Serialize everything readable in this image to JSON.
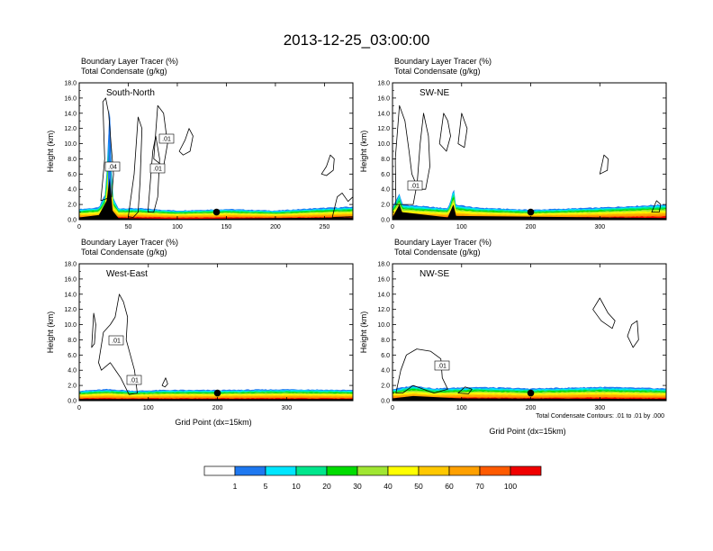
{
  "figure": {
    "title": "2013-12-25_03:00:00",
    "xlabel": "Grid Point (dx=15km)",
    "ylabel": "Height (km)",
    "contour_note": "Total Condensate Contours: .01 to .01 by .000"
  },
  "colorbar": {
    "labels": [
      "1",
      "5",
      "10",
      "20",
      "30",
      "40",
      "50",
      "60",
      "70",
      "100"
    ],
    "colors": [
      "#ffffff",
      "#1e78f0",
      "#00e6ff",
      "#00e68c",
      "#00dc00",
      "#a0e632",
      "#ffff00",
      "#ffc800",
      "#ffa000",
      "#ff5a00",
      "#f00000"
    ]
  },
  "chart_data": [
    {
      "type": "contour",
      "region_label": "South-North",
      "header_lines": [
        "Boundary Layer Tracer   (%)",
        "Total Condensate   (g/kg)"
      ],
      "xlim": [
        0,
        279
      ],
      "xticks": [
        "0",
        "50",
        "100",
        "150",
        "200",
        "250"
      ],
      "ylim": [
        0,
        18
      ],
      "yticks": [
        "0.0",
        "2.0",
        "4.0",
        "6.0",
        "8.0",
        "10.0",
        "12.0",
        "14.0",
        "16.0",
        "18.0"
      ],
      "contour_labels": [
        ".04",
        ".01",
        ".01"
      ],
      "marker_x": 140,
      "terrain": [
        [
          0,
          0.3
        ],
        [
          20,
          0.6
        ],
        [
          28,
          2.5
        ],
        [
          31,
          5.5
        ],
        [
          34,
          1.2
        ],
        [
          40,
          0.2
        ],
        [
          100,
          0.1
        ],
        [
          279,
          0.3
        ]
      ],
      "tracer_top": [
        [
          0,
          1.4
        ],
        [
          20,
          1.6
        ],
        [
          27,
          3.5
        ],
        [
          31,
          15
        ],
        [
          34,
          3
        ],
        [
          40,
          1.5
        ],
        [
          60,
          1.5
        ],
        [
          100,
          1.2
        ],
        [
          150,
          1.4
        ],
        [
          200,
          1.2
        ],
        [
          240,
          1.5
        ],
        [
          279,
          1.7
        ]
      ],
      "tracer_spike": [
        [
          29,
          2
        ],
        [
          30,
          12
        ],
        [
          31,
          14.5
        ],
        [
          32,
          12
        ],
        [
          33,
          2
        ]
      ],
      "clouds": [
        [
          [
            22,
            2.5
          ],
          [
            26,
            8
          ],
          [
            24,
            15.5
          ],
          [
            27,
            16
          ],
          [
            30,
            14
          ],
          [
            33,
            9
          ],
          [
            35,
            6
          ],
          [
            33,
            3
          ]
        ],
        [
          [
            50,
            0.4
          ],
          [
            56,
            6
          ],
          [
            60,
            13.5
          ],
          [
            64,
            12
          ],
          [
            62,
            5
          ],
          [
            60,
            1
          ],
          [
            55,
            0.3
          ]
        ],
        [
          [
            70,
            1
          ],
          [
            75,
            9
          ],
          [
            78,
            11
          ],
          [
            82,
            8
          ],
          [
            80,
            3
          ],
          [
            76,
            1
          ]
        ],
        [
          [
            76,
            8
          ],
          [
            80,
            15
          ],
          [
            86,
            14
          ],
          [
            90,
            10
          ],
          [
            86,
            7
          ]
        ],
        [
          [
            102,
            9
          ],
          [
            108,
            10.5
          ],
          [
            112,
            12
          ],
          [
            116,
            11
          ],
          [
            113,
            9
          ],
          [
            106,
            8.5
          ]
        ],
        [
          [
            247,
            6
          ],
          [
            252,
            7
          ],
          [
            256,
            8.5
          ],
          [
            260,
            8
          ],
          [
            259,
            6.5
          ],
          [
            252,
            5.8
          ]
        ],
        [
          [
            258,
            0.3
          ],
          [
            263,
            3
          ],
          [
            268,
            3.5
          ],
          [
            274,
            2.4
          ],
          [
            279,
            3
          ],
          [
            279,
            0.4
          ]
        ]
      ]
    },
    {
      "type": "contour",
      "region_label": "SW-NE",
      "header_lines": [
        "Boundary Layer Tracer   (%)",
        "Total Condensate   (g/kg)"
      ],
      "xlim": [
        0,
        396
      ],
      "xticks": [
        "0",
        "100",
        "200",
        "300"
      ],
      "ylim": [
        0,
        18
      ],
      "yticks": [
        "0.0",
        "2.0",
        "4.0",
        "6.0",
        "8.0",
        "10.0",
        "12.0",
        "14.0",
        "16.0",
        "18.0"
      ],
      "contour_labels": [
        ".01"
      ],
      "marker_x": 200,
      "terrain": [
        [
          0,
          0.3
        ],
        [
          10,
          2
        ],
        [
          14,
          1
        ],
        [
          80,
          0.3
        ],
        [
          88,
          2
        ],
        [
          92,
          0.5
        ],
        [
          396,
          0.2
        ]
      ],
      "tracer_top": [
        [
          0,
          1.6
        ],
        [
          10,
          3.5
        ],
        [
          14,
          2
        ],
        [
          40,
          1.8
        ],
        [
          80,
          1.5
        ],
        [
          86,
          3
        ],
        [
          88,
          5
        ],
        [
          91,
          2
        ],
        [
          120,
          1.6
        ],
        [
          200,
          1.3
        ],
        [
          300,
          1.6
        ],
        [
          396,
          2
        ]
      ],
      "tracer_spike": [],
      "clouds": [
        [
          [
            5,
            2
          ],
          [
            4,
            8
          ],
          [
            10,
            15
          ],
          [
            18,
            13
          ],
          [
            24,
            9
          ],
          [
            28,
            6
          ],
          [
            35,
            4.5
          ],
          [
            30,
            2
          ]
        ],
        [
          [
            35,
            4
          ],
          [
            40,
            10
          ],
          [
            45,
            14
          ],
          [
            52,
            11
          ],
          [
            54,
            7
          ],
          [
            48,
            4
          ]
        ],
        [
          [
            68,
            10
          ],
          [
            74,
            14
          ],
          [
            80,
            13
          ],
          [
            84,
            11
          ],
          [
            78,
            9
          ]
        ],
        [
          [
            95,
            10
          ],
          [
            100,
            14
          ],
          [
            108,
            12
          ],
          [
            104,
            9.5
          ]
        ],
        [
          [
            300,
            6
          ],
          [
            306,
            8.5
          ],
          [
            312,
            8
          ],
          [
            311,
            6.5
          ]
        ],
        [
          [
            375,
            1
          ],
          [
            382,
            2.5
          ],
          [
            388,
            2
          ],
          [
            386,
            1
          ]
        ]
      ]
    },
    {
      "type": "contour",
      "region_label": "West-East",
      "header_lines": [
        "Boundary Layer Tracer   (%)",
        "Total Condensate   (g/kg)"
      ],
      "xlim": [
        0,
        396
      ],
      "xticks": [
        "0",
        "100",
        "200",
        "300"
      ],
      "ylim": [
        0,
        18
      ],
      "yticks": [
        "0.0",
        "2.0",
        "4.0",
        "6.0",
        "8.0",
        "10.0",
        "12.0",
        "14.0",
        "16.0",
        "18.0"
      ],
      "contour_labels": [
        ".01",
        ".01"
      ],
      "marker_x": 200,
      "terrain": [
        [
          0,
          0.2
        ],
        [
          396,
          0.2
        ]
      ],
      "tracer_top": [
        [
          0,
          1.3
        ],
        [
          40,
          1.5
        ],
        [
          80,
          1.3
        ],
        [
          120,
          1.4
        ],
        [
          200,
          1.4
        ],
        [
          300,
          1.5
        ],
        [
          396,
          1.4
        ]
      ],
      "tracer_spike": [],
      "clouds": [
        [
          [
            18,
            7
          ],
          [
            21,
            11.5
          ],
          [
            24,
            10
          ],
          [
            22,
            7.5
          ]
        ],
        [
          [
            28,
            5
          ],
          [
            35,
            9
          ],
          [
            45,
            10
          ],
          [
            52,
            11
          ],
          [
            58,
            14
          ],
          [
            64,
            13
          ],
          [
            70,
            11
          ],
          [
            68,
            8
          ],
          [
            80,
            4
          ],
          [
            84,
            1
          ],
          [
            72,
            0.8
          ],
          [
            60,
            3
          ],
          [
            45,
            5
          ],
          [
            32,
            4
          ]
        ],
        [
          [
            120,
            2
          ],
          [
            125,
            3
          ],
          [
            128,
            2.2
          ],
          [
            124,
            1.8
          ]
        ]
      ]
    },
    {
      "type": "contour",
      "region_label": "NW-SE",
      "header_lines": [
        "Boundary Layer Tracer   (%)",
        "Total Condensate   (g/kg)"
      ],
      "xlim": [
        0,
        396
      ],
      "xticks": [
        "0",
        "100",
        "200",
        "300"
      ],
      "ylim": [
        0,
        18
      ],
      "yticks": [
        "0.0",
        "2.0",
        "4.0",
        "6.0",
        "8.0",
        "10.0",
        "12.0",
        "14.0",
        "16.0",
        "18.0"
      ],
      "contour_labels": [
        ".01"
      ],
      "marker_x": 200,
      "terrain": [
        [
          0,
          0.3
        ],
        [
          30,
          0.6
        ],
        [
          100,
          0.3
        ],
        [
          396,
          0.2
        ]
      ],
      "tracer_top": [
        [
          0,
          1.5
        ],
        [
          30,
          2
        ],
        [
          60,
          1.6
        ],
        [
          120,
          1.8
        ],
        [
          200,
          1.6
        ],
        [
          300,
          1.8
        ],
        [
          396,
          1.6
        ]
      ],
      "tracer_spike": [],
      "clouds": [
        [
          [
            5,
            1
          ],
          [
            12,
            4
          ],
          [
            20,
            6
          ],
          [
            35,
            6.8
          ],
          [
            55,
            6.5
          ],
          [
            70,
            5.5
          ],
          [
            72,
            3
          ],
          [
            80,
            1.5
          ],
          [
            60,
            1
          ],
          [
            30,
            2
          ],
          [
            15,
            1
          ]
        ],
        [
          [
            95,
            1
          ],
          [
            105,
            1.8
          ],
          [
            115,
            1.5
          ],
          [
            110,
            0.9
          ]
        ],
        [
          [
            290,
            12
          ],
          [
            300,
            13.5
          ],
          [
            312,
            11.5
          ],
          [
            322,
            10.5
          ],
          [
            318,
            9.5
          ],
          [
            302,
            10.5
          ]
        ],
        [
          [
            340,
            8.5
          ],
          [
            346,
            10
          ],
          [
            354,
            10.5
          ],
          [
            356,
            8
          ],
          [
            348,
            7
          ]
        ]
      ]
    }
  ]
}
